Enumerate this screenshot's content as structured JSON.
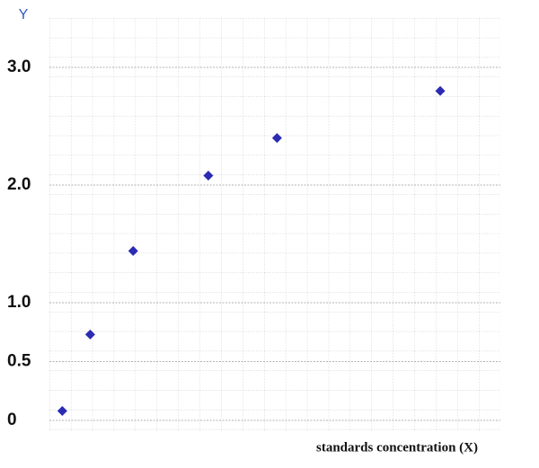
{
  "chart_data": {
    "type": "scatter",
    "y_label": "Y",
    "x_label": "standards concentration (X)",
    "x": [
      0.6,
      1.9,
      3.9,
      7.4,
      10.6,
      18.2
    ],
    "values": [
      0.08,
      0.73,
      1.44,
      2.08,
      2.4,
      2.8
    ],
    "color": "#2b2bb3",
    "xlim": [
      0,
      21
    ],
    "ylim": [
      0,
      3.5
    ],
    "yticks": [
      {
        "value": 0,
        "label": "0"
      },
      {
        "value": 0.5,
        "label": "0.5"
      },
      {
        "value": 1,
        "label": "1.0"
      },
      {
        "value": 2,
        "label": "2.0"
      },
      {
        "value": 3,
        "label": "3.0"
      }
    ],
    "grid": true
  }
}
